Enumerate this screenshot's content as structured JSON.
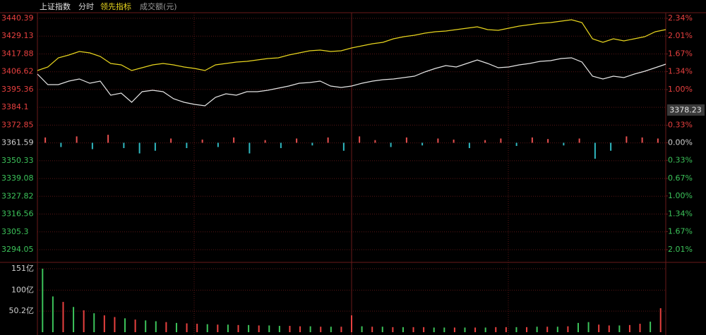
{
  "header": {
    "mode": "分时"
  },
  "price_tag": "3378.23",
  "chart_data": [
    {
      "type": "line",
      "ylim": [
        3294.05,
        3440.39
      ],
      "yticks": [
        3440.39,
        3429.13,
        3417.88,
        3406.62,
        3395.36,
        3384.1,
        3372.85,
        3361.59,
        3350.33,
        3339.08,
        3327.82,
        3316.56,
        3305.3,
        3294.05
      ],
      "y2lim": [
        -2.01,
        2.34
      ],
      "y2ticks": [
        {
          "value": 2.34,
          "label": "2.34%"
        },
        {
          "value": 2.01,
          "label": "2.01%"
        },
        {
          "value": 1.67,
          "label": "1.67%"
        },
        {
          "value": 1.34,
          "label": "1.34%"
        },
        {
          "value": 1.0,
          "label": "1.00%"
        },
        {
          "value": 0.33,
          "label": "0.33%"
        },
        {
          "value": 0,
          "label": "0.00%"
        },
        {
          "value": -0.33,
          "label": "0.33%"
        },
        {
          "value": -0.67,
          "label": "0.67%"
        },
        {
          "value": -1.0,
          "label": "1.00%"
        },
        {
          "value": -1.34,
          "label": "1.34%"
        },
        {
          "value": -1.67,
          "label": "1.67%"
        },
        {
          "value": -2.01,
          "label": "2.01%"
        }
      ],
      "up_color": "#e8403f",
      "down_color": "#3cc35a",
      "flat_color": "#d0d0d0",
      "grid": true,
      "series": [
        {
          "name": "上证指数",
          "color": "#e6e6e6",
          "values": [
            3405.14,
            3398.45,
            3398.45,
            3400.68,
            3402.02,
            3399.34,
            3400.68,
            3391.76,
            3393.1,
            3387.3,
            3393.99,
            3394.88,
            3393.99,
            3389.53,
            3387.3,
            3385.96,
            3385.07,
            3390.42,
            3392.65,
            3391.76,
            3393.99,
            3393.99,
            3394.88,
            3396.22,
            3397.56,
            3399.34,
            3399.79,
            3400.68,
            3397.56,
            3396.67,
            3397.56,
            3399.34,
            3400.68,
            3401.57,
            3402.02,
            3402.91,
            3403.8,
            3406.48,
            3408.71,
            3410.5,
            3409.6,
            3411.84,
            3414.07,
            3411.84,
            3409.16,
            3409.6,
            3410.94,
            3411.84,
            3413.17,
            3413.62,
            3414.96,
            3415.41,
            3412.73,
            3403.8,
            3402.02,
            3403.8,
            3402.91,
            3405.14,
            3406.93,
            3409.16,
            3411.39
          ]
        },
        {
          "name": "领先指标",
          "color": "#e8d51e",
          "values": [
            3407.37,
            3409.6,
            3415.41,
            3417.19,
            3419.42,
            3418.53,
            3416.3,
            3411.84,
            3410.94,
            3407.37,
            3409.16,
            3410.94,
            3411.84,
            3410.94,
            3409.6,
            3408.71,
            3407.37,
            3410.94,
            3411.84,
            3412.73,
            3413.17,
            3414.07,
            3414.96,
            3415.41,
            3417.19,
            3418.53,
            3419.87,
            3420.31,
            3419.42,
            3419.87,
            3421.65,
            3422.99,
            3424.33,
            3425.22,
            3427.45,
            3428.79,
            3429.68,
            3431.02,
            3431.91,
            3432.36,
            3433.25,
            3434.14,
            3435.04,
            3433.25,
            3432.81,
            3434.14,
            3435.48,
            3436.37,
            3437.27,
            3437.71,
            3438.61,
            3439.5,
            3437.71,
            3427.45,
            3425.22,
            3427.45,
            3426.11,
            3427.45,
            3428.79,
            3431.91,
            3433.25
          ]
        }
      ]
    },
    {
      "type": "bar",
      "ylim": [
        -2.01,
        2.34
      ],
      "up_color": "#e8504f",
      "down_color": "#2fb8c0",
      "values": [
        0.1,
        -0.08,
        0.12,
        -0.12,
        0.15,
        -0.1,
        -0.2,
        -0.15,
        0.08,
        -0.1,
        0.06,
        -0.08,
        0.1,
        -0.2,
        0.05,
        -0.1,
        0.08,
        -0.05,
        0.1,
        -0.15,
        0.12,
        0.05,
        -0.08,
        0.1,
        -0.05,
        0.08,
        0.06,
        -0.1,
        0.05,
        0.08,
        -0.06,
        0.1,
        0.07,
        -0.05,
        0.08,
        -0.3,
        -0.15,
        0.12,
        0.1,
        0.08
      ]
    },
    {
      "type": "bar",
      "title": "成交额(元)",
      "ylim": [
        0,
        151
      ],
      "yticks": [
        {
          "value": 151,
          "label": "151亿"
        },
        {
          "value": 100,
          "label": "100亿"
        },
        {
          "value": 50.2,
          "label": "50.2亿"
        }
      ],
      "values": [
        151,
        85,
        72,
        60,
        52,
        45,
        40,
        36,
        33,
        30,
        28,
        26,
        24,
        22,
        21,
        20,
        19,
        18,
        18,
        17,
        17,
        16,
        16,
        15,
        15,
        14,
        14,
        13,
        13,
        13,
        40,
        14,
        13,
        13,
        12,
        12,
        12,
        12,
        11,
        11,
        11,
        11,
        11,
        11,
        12,
        12,
        12,
        12,
        13,
        13,
        13,
        14,
        22,
        24,
        18,
        16,
        16,
        17,
        20,
        25,
        57
      ],
      "colors": [
        "#3cc35a",
        "#3cc35a",
        "#e8403f",
        "#3cc35a",
        "#e8403f",
        "#3cc35a",
        "#e8403f",
        "#e8403f",
        "#3cc35a",
        "#e8403f",
        "#3cc35a",
        "#3cc35a",
        "#e8403f",
        "#3cc35a",
        "#e8403f",
        "#e8403f",
        "#3cc35a",
        "#e8403f",
        "#3cc35a",
        "#e8403f",
        "#3cc35a",
        "#e8403f",
        "#3cc35a",
        "#3cc35a",
        "#e8403f",
        "#e8403f",
        "#3cc35a",
        "#e8403f",
        "#3cc35a",
        "#e8403f",
        "#e8403f",
        "#3cc35a",
        "#e8403f",
        "#3cc35a",
        "#e8403f",
        "#3cc35a",
        "#e8403f",
        "#e8403f",
        "#3cc35a",
        "#3cc35a",
        "#e8403f",
        "#3cc35a",
        "#e8403f",
        "#3cc35a",
        "#e8403f",
        "#e8403f",
        "#3cc35a",
        "#e8403f",
        "#3cc35a",
        "#e8403f",
        "#3cc35a",
        "#e8403f",
        "#3cc35a",
        "#3cc35a",
        "#e8403f",
        "#e8403f",
        "#3cc35a",
        "#e8403f",
        "#e8403f",
        "#3cc35a",
        "#e8403f"
      ]
    }
  ]
}
